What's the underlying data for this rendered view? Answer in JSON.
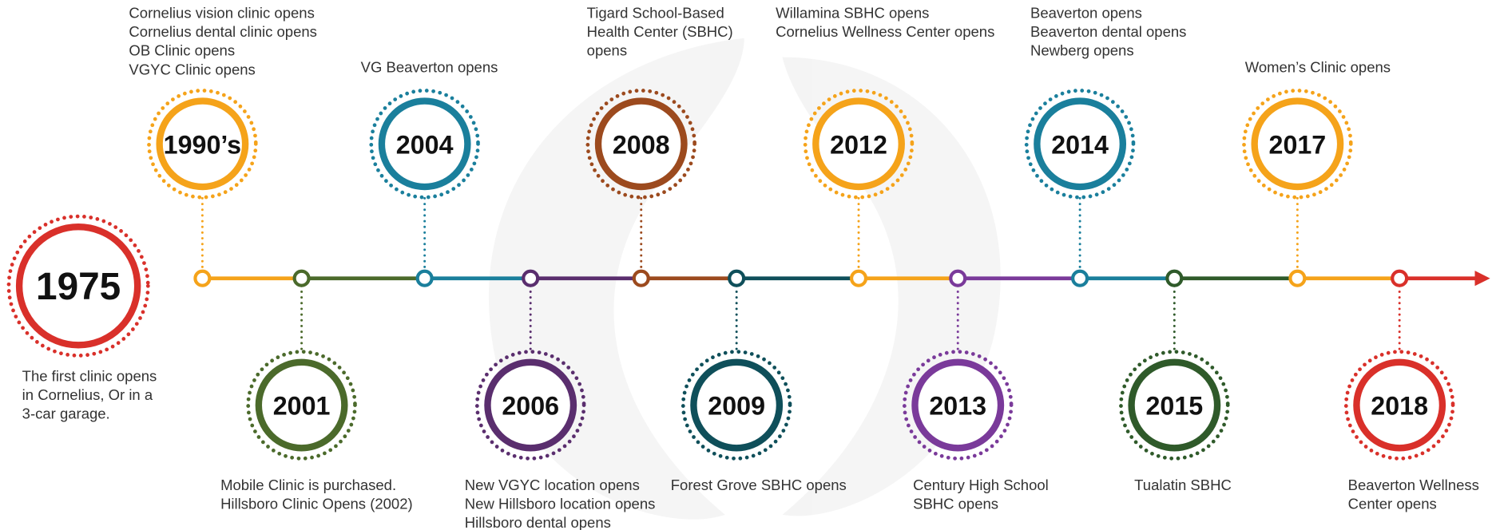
{
  "events": [
    {
      "year": "1975",
      "color": "#d9302a",
      "lines": [
        "The first clinic opens",
        "in Cornelius, Or in a",
        "3-car garage."
      ]
    },
    {
      "year": "1990’s",
      "color": "#f5a31a",
      "lines": [
        "Cornelius vision clinic opens",
        "Cornelius dental clinic opens",
        "OB Clinic opens",
        "VGYC Clinic opens"
      ]
    },
    {
      "year": "2001",
      "color": "#4b6a2b",
      "lines": [
        "Mobile Clinic is purchased.",
        "Hillsboro Clinic Opens (2002)"
      ]
    },
    {
      "year": "2004",
      "color": "#1a7f9c",
      "lines": [
        "VG Beaverton opens"
      ]
    },
    {
      "year": "2006",
      "color": "#5a2e6e",
      "lines": [
        "New VGYC location opens",
        "New Hillsboro location opens",
        "Hillsboro dental opens"
      ]
    },
    {
      "year": "2008",
      "color": "#9c4a1e",
      "lines": [
        "Tigard School-Based",
        "Health Center (SBHC)",
        "opens"
      ]
    },
    {
      "year": "2009",
      "color": "#0f4f5a",
      "lines": [
        "Forest Grove SBHC opens"
      ]
    },
    {
      "year": "2012",
      "color": "#f5a31a",
      "lines": [
        "Willamina SBHC opens",
        "Cornelius Wellness Center opens"
      ]
    },
    {
      "year": "2013",
      "color": "#7a3a9a",
      "lines": [
        "Century High School",
        "SBHC opens"
      ]
    },
    {
      "year": "2014",
      "color": "#1a7f9c",
      "lines": [
        "Beaverton opens",
        "Beaverton dental opens",
        "Newberg opens"
      ]
    },
    {
      "year": "2015",
      "color": "#2f5a2a",
      "lines": [
        "Tualatin SBHC"
      ]
    },
    {
      "year": "2017",
      "color": "#f5a31a",
      "lines": [
        "Women’s Clinic opens"
      ]
    },
    {
      "year": "2018",
      "color": "#d9302a",
      "lines": [
        "Beaverton Wellness",
        "Center opens"
      ]
    }
  ]
}
